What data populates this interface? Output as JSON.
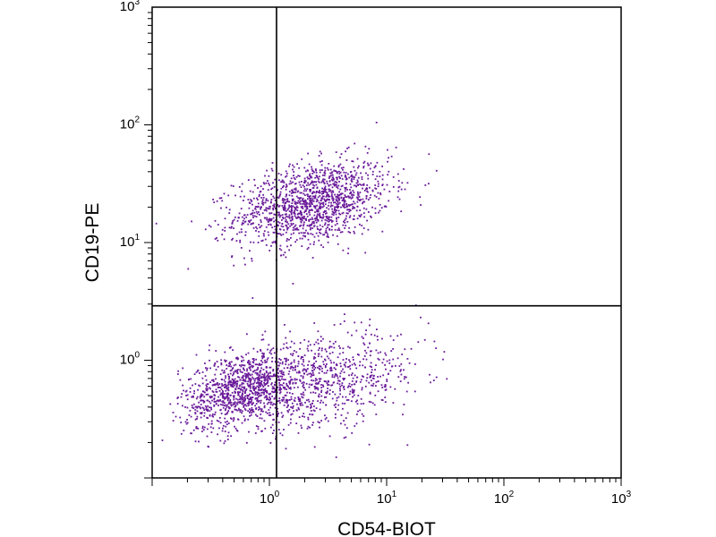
{
  "chart_data": {
    "type": "scatter",
    "title": "",
    "xlabel": "CD54-BIOT",
    "ylabel": "CD19-PE",
    "x_scale": "log",
    "y_scale": "log",
    "xlim": [
      0.1,
      1000
    ],
    "ylim": [
      0.1,
      1000
    ],
    "x_ticks": [
      {
        "value": 1,
        "base": "10",
        "exp": "0"
      },
      {
        "value": 10,
        "base": "10",
        "exp": "1"
      },
      {
        "value": 100,
        "base": "10",
        "exp": "2"
      },
      {
        "value": 1000,
        "base": "10",
        "exp": "3"
      }
    ],
    "y_ticks": [
      {
        "value": 1,
        "base": "10",
        "exp": "0"
      },
      {
        "value": 10,
        "base": "10",
        "exp": "1"
      },
      {
        "value": 100,
        "base": "10",
        "exp": "2"
      },
      {
        "value": 1000,
        "base": "10",
        "exp": "3"
      }
    ],
    "gate_lines": {
      "x": 1.15,
      "y": 2.9
    },
    "grid": false,
    "legend": "none",
    "point_color": "#6a1b9a",
    "populations": [
      {
        "center_x": 2.3,
        "center_y": 22,
        "spread_x_log10": 0.33,
        "spread_y_log10": 0.18,
        "count": 1400
      },
      {
        "center_x": 0.6,
        "center_y": 0.58,
        "spread_x_log10": 0.26,
        "spread_y_log10": 0.17,
        "count": 1100
      },
      {
        "center_x": 3.0,
        "center_y": 0.65,
        "spread_x_log10": 0.42,
        "spread_y_log10": 0.2,
        "count": 700
      }
    ]
  }
}
